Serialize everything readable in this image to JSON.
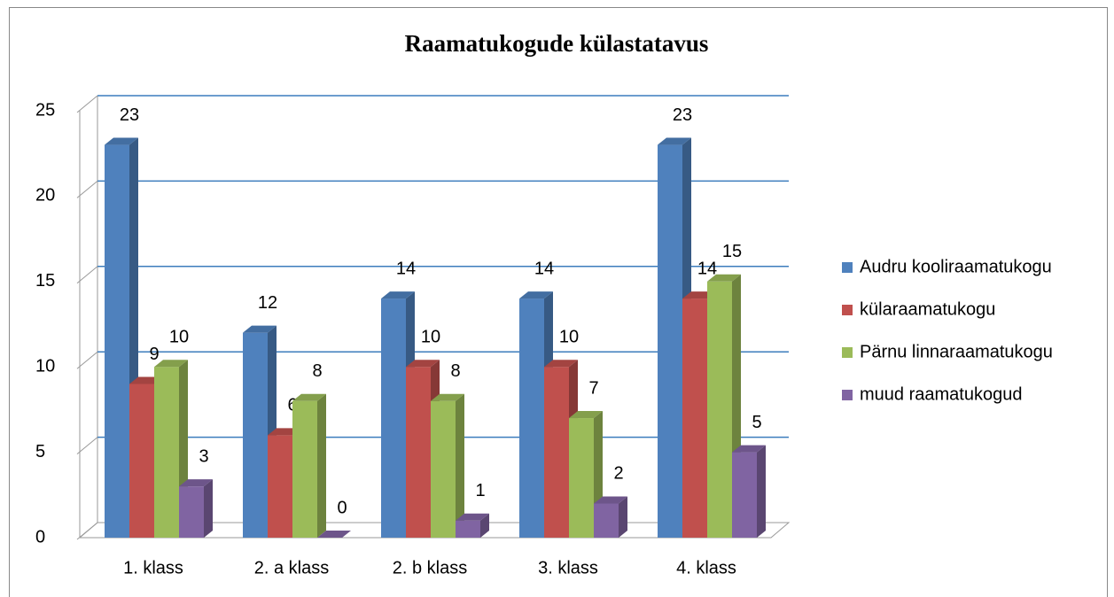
{
  "chart_data": {
    "type": "bar3d",
    "title": "Raamatukogude külastatavus",
    "categories": [
      "1. klass",
      "2. a klass",
      "2. b klass",
      "3. klass",
      "4. klass"
    ],
    "series": [
      {
        "name": "Audru kooliraamatukogu",
        "color": "#4f81bd",
        "values": [
          23,
          12,
          14,
          14,
          23
        ]
      },
      {
        "name": "külaraamatukogu",
        "color": "#c0504d",
        "values": [
          9,
          6,
          10,
          10,
          14
        ]
      },
      {
        "name": "Pärnu linnaraamatukogu",
        "color": "#9bbb59",
        "values": [
          10,
          8,
          8,
          7,
          15
        ]
      },
      {
        "name": "muud raamatukogud",
        "color": "#8064a2",
        "values": [
          3,
          0,
          1,
          2,
          5
        ]
      }
    ],
    "ylim": [
      0,
      25
    ],
    "yticks": [
      0,
      5,
      10,
      15,
      20,
      25
    ],
    "grid": true,
    "legend": "right"
  }
}
